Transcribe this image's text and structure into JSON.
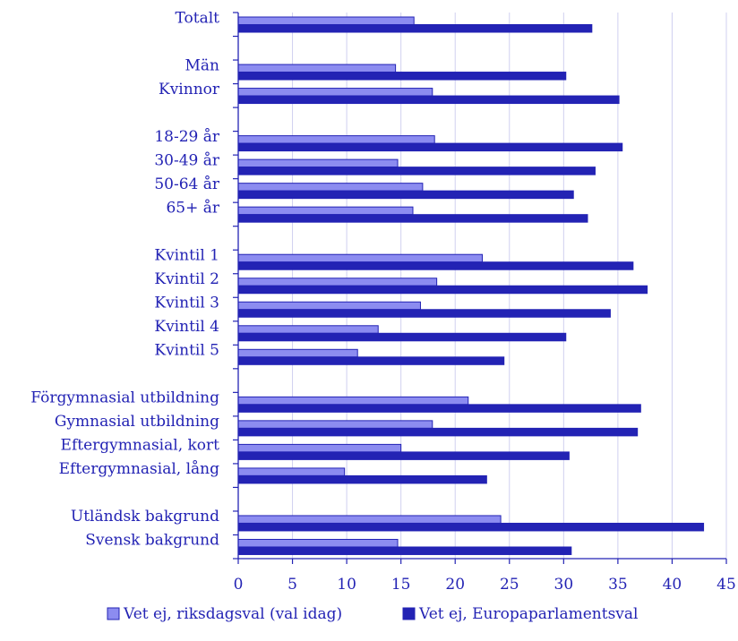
{
  "chart_data": {
    "type": "bar",
    "orientation": "horizontal",
    "title": "",
    "xlabel": "",
    "ylabel": "",
    "xlim": [
      0,
      45
    ],
    "x_ticks": [
      0,
      5,
      10,
      15,
      20,
      25,
      30,
      35,
      40,
      45
    ],
    "grid": "vertical",
    "legend_position": "bottom",
    "categories": [
      "Totalt",
      "",
      "Män",
      "Kvinnor",
      "",
      "18-29 år",
      "30-49 år",
      "50-64 år",
      "65+ år",
      "",
      "Kvintil 1",
      "Kvintil 2",
      "Kvintil 3",
      "Kvintil 4",
      "Kvintil 5",
      "",
      "Förgymnasial utbildning",
      "Gymnasial utbildning",
      "Eftergymnasial, kort",
      "Eftergymnasial, lång",
      "",
      "Utländsk bakgrund",
      "Svensk bakgrund"
    ],
    "series": [
      {
        "name": "Vet ej, riksdagsval (val idag)",
        "color": "#8c8cf0",
        "values": [
          16.2,
          null,
          14.5,
          17.9,
          null,
          18.1,
          14.7,
          17.0,
          16.1,
          null,
          22.5,
          18.3,
          16.8,
          12.9,
          11.0,
          null,
          21.2,
          17.9,
          15.0,
          9.8,
          null,
          24.2,
          14.7
        ]
      },
      {
        "name": "Vet ej, Europaparlamentsval",
        "color": "#2323b4",
        "values": [
          32.6,
          null,
          30.2,
          35.1,
          null,
          35.4,
          32.9,
          30.9,
          32.2,
          null,
          36.4,
          37.7,
          34.3,
          30.2,
          24.5,
          null,
          37.1,
          36.8,
          30.5,
          22.9,
          null,
          42.9,
          30.7
        ]
      }
    ]
  },
  "colors": {
    "accent": "#2323b4",
    "grid": "#d0d0f0",
    "axis": "#2323b4"
  }
}
